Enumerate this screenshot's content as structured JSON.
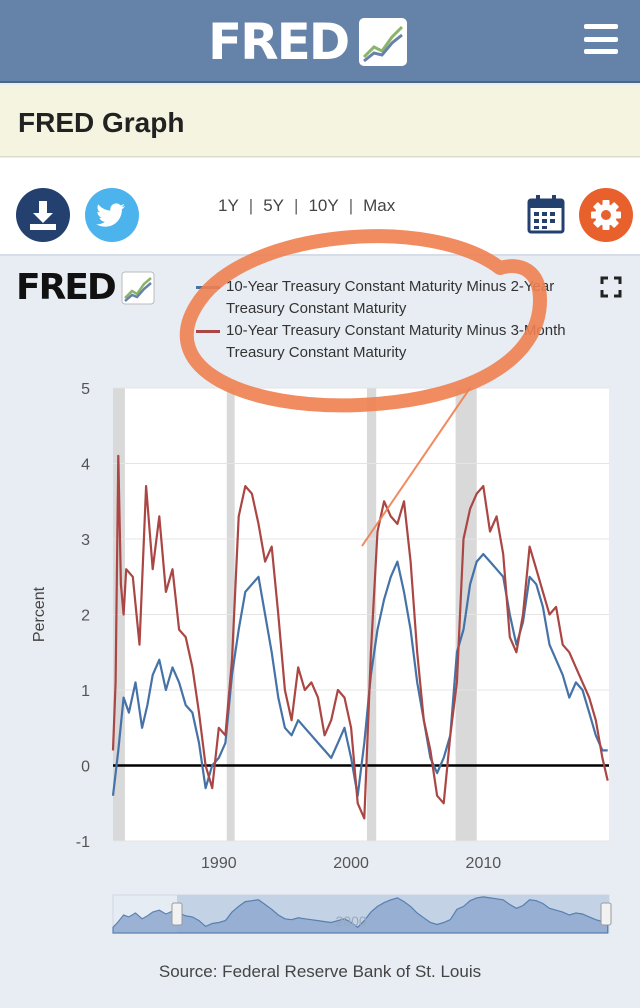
{
  "header": {
    "logo_text": "FRED",
    "menu_icon": "hamburger-menu-icon"
  },
  "title_bar": {
    "title": "FRED Graph"
  },
  "toolbar": {
    "download_icon": "download-icon",
    "twitter_icon": "twitter-icon",
    "calendar_icon": "calendar-icon",
    "settings_icon": "gear-icon",
    "ranges": [
      "1Y",
      "5Y",
      "10Y",
      "Max"
    ],
    "range_separator": "|"
  },
  "graph": {
    "logo_text": "FRED",
    "expand_icon": "fullscreen-icon",
    "source": "Source: Federal Reserve Bank of St. Louis",
    "navigator_label": "2000"
  },
  "colors": {
    "header_bg": "#6582a8",
    "series1": "#4572a7",
    "series2": "#aa4643",
    "annotation": "#f08050",
    "recession": "#d9d9d9"
  },
  "chart_data": {
    "type": "line",
    "title": "",
    "ylabel": "Percent",
    "xlabel": "",
    "ylim": [
      -1,
      5
    ],
    "yticks": [
      -1,
      0,
      1,
      2,
      3,
      4,
      5
    ],
    "xticks": [
      1990,
      2000,
      2010
    ],
    "xlim": [
      1982,
      2019.5
    ],
    "grid": true,
    "legend_position": "top",
    "recessions": [
      [
        1981.5,
        1982.9
      ],
      [
        1990.6,
        1991.2
      ],
      [
        2001.2,
        2001.9
      ],
      [
        2007.9,
        2009.5
      ]
    ],
    "series": [
      {
        "name": "10-Year Treasury Constant Maturity Minus 2-Year Treasury Constant Maturity",
        "color": "#4572a7",
        "x": [
          1982.0,
          1982.4,
          1982.8,
          1983.2,
          1983.7,
          1984.2,
          1984.6,
          1985.0,
          1985.5,
          1986.0,
          1986.5,
          1987.0,
          1987.5,
          1988.0,
          1988.5,
          1989.0,
          1989.5,
          1990.0,
          1990.5,
          1991.0,
          1991.5,
          1992.0,
          1992.5,
          1993.0,
          1993.5,
          1994.0,
          1994.5,
          1995.0,
          1995.5,
          1996.0,
          1996.5,
          1997.0,
          1997.5,
          1998.0,
          1998.5,
          1999.0,
          1999.5,
          2000.0,
          2000.5,
          2001.0,
          2001.5,
          2002.0,
          2002.5,
          2003.0,
          2003.5,
          2004.0,
          2004.5,
          2005.0,
          2005.5,
          2006.0,
          2006.5,
          2007.0,
          2007.5,
          2008.0,
          2008.5,
          2009.0,
          2009.5,
          2010.0,
          2010.5,
          2011.0,
          2011.5,
          2012.0,
          2012.5,
          2013.0,
          2013.5,
          2014.0,
          2014.5,
          2015.0,
          2015.5,
          2016.0,
          2016.5,
          2017.0,
          2017.5,
          2018.0,
          2018.5,
          2019.0,
          2019.4
        ],
        "values": [
          -0.4,
          0.2,
          0.9,
          0.7,
          1.1,
          0.5,
          0.8,
          1.2,
          1.4,
          1.0,
          1.3,
          1.1,
          0.8,
          0.7,
          0.3,
          -0.3,
          0.0,
          0.1,
          0.3,
          1.2,
          1.8,
          2.3,
          2.4,
          2.5,
          2.0,
          1.5,
          0.9,
          0.5,
          0.4,
          0.6,
          0.5,
          0.4,
          0.3,
          0.2,
          0.1,
          0.3,
          0.5,
          0.1,
          -0.4,
          0.3,
          1.2,
          1.8,
          2.2,
          2.5,
          2.7,
          2.3,
          1.8,
          1.1,
          0.6,
          0.1,
          -0.1,
          0.1,
          0.4,
          1.5,
          1.8,
          2.4,
          2.7,
          2.8,
          2.7,
          2.6,
          2.5,
          2.0,
          1.6,
          1.9,
          2.5,
          2.4,
          2.1,
          1.6,
          1.4,
          1.2,
          0.9,
          1.1,
          1.0,
          0.7,
          0.4,
          0.2,
          0.2
        ]
      },
      {
        "name": "10-Year Treasury Constant Maturity Minus 3-Month Treasury Constant Maturity",
        "color": "#aa4643",
        "x": [
          1982.0,
          1982.2,
          1982.4,
          1982.6,
          1982.8,
          1983.0,
          1983.5,
          1984.0,
          1984.5,
          1985.0,
          1985.5,
          1986.0,
          1986.5,
          1987.0,
          1987.5,
          1988.0,
          1988.5,
          1989.0,
          1989.5,
          1990.0,
          1990.5,
          1991.0,
          1991.5,
          1992.0,
          1992.5,
          1993.0,
          1993.5,
          1994.0,
          1994.5,
          1995.0,
          1995.5,
          1996.0,
          1996.5,
          1997.0,
          1997.5,
          1998.0,
          1998.5,
          1999.0,
          1999.5,
          2000.0,
          2000.5,
          2001.0,
          2001.5,
          2002.0,
          2002.5,
          2003.0,
          2003.5,
          2004.0,
          2004.5,
          2005.0,
          2005.5,
          2006.0,
          2006.5,
          2007.0,
          2007.5,
          2008.0,
          2008.5,
          2009.0,
          2009.5,
          2010.0,
          2010.5,
          2011.0,
          2011.5,
          2012.0,
          2012.5,
          2013.0,
          2013.5,
          2014.0,
          2014.5,
          2015.0,
          2015.5,
          2016.0,
          2016.5,
          2017.0,
          2017.5,
          2018.0,
          2018.5,
          2019.0,
          2019.4
        ],
        "values": [
          0.2,
          1.1,
          4.1,
          2.4,
          2.0,
          2.6,
          2.5,
          1.6,
          3.7,
          2.6,
          3.3,
          2.3,
          2.6,
          1.8,
          1.7,
          1.3,
          0.7,
          0.0,
          -0.3,
          0.5,
          0.4,
          1.4,
          3.3,
          3.7,
          3.6,
          3.2,
          2.7,
          2.9,
          2.0,
          1.0,
          0.6,
          1.3,
          1.0,
          1.1,
          0.9,
          0.4,
          0.6,
          1.0,
          0.9,
          0.5,
          -0.5,
          -0.7,
          1.5,
          3.1,
          3.5,
          3.3,
          3.2,
          3.5,
          2.7,
          1.5,
          0.6,
          0.2,
          -0.4,
          -0.5,
          0.4,
          1.1,
          3.0,
          3.4,
          3.6,
          3.7,
          3.1,
          3.3,
          2.8,
          1.7,
          1.5,
          2.0,
          2.9,
          2.6,
          2.3,
          2.0,
          2.1,
          1.6,
          1.5,
          1.3,
          1.1,
          0.9,
          0.6,
          0.1,
          -0.2
        ]
      }
    ]
  }
}
